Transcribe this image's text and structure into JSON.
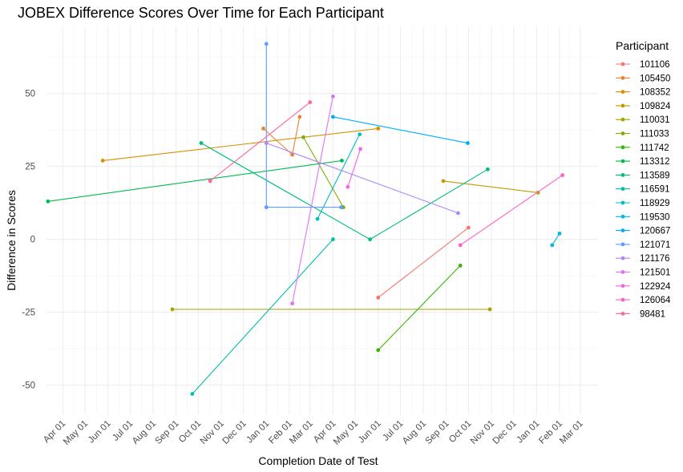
{
  "chart_data": {
    "type": "line",
    "title": "JOBEX Difference Scores Over Time for Each Participant",
    "xlabel": "Completion Date of Test",
    "ylabel": "Difference in Scores",
    "xlim": [
      "2020-03-10",
      "2022-03-25"
    ],
    "ylim": [
      -60,
      73
    ],
    "x_ticks": [
      {
        "date": "2020-04-01",
        "label": "Apr 01"
      },
      {
        "date": "2020-05-01",
        "label": "May 01"
      },
      {
        "date": "2020-06-01",
        "label": "Jun 01"
      },
      {
        "date": "2020-07-01",
        "label": "Jul 01"
      },
      {
        "date": "2020-08-01",
        "label": "Aug 01"
      },
      {
        "date": "2020-09-01",
        "label": "Sep 01"
      },
      {
        "date": "2020-10-01",
        "label": "Oct 01"
      },
      {
        "date": "2020-11-01",
        "label": "Nov 01"
      },
      {
        "date": "2020-12-01",
        "label": "Dec 01"
      },
      {
        "date": "2021-01-01",
        "label": "Jan 01"
      },
      {
        "date": "2021-02-01",
        "label": "Feb 01"
      },
      {
        "date": "2021-03-01",
        "label": "Mar 01"
      },
      {
        "date": "2021-04-01",
        "label": "Apr 01"
      },
      {
        "date": "2021-05-01",
        "label": "May 01"
      },
      {
        "date": "2021-06-01",
        "label": "Jun 01"
      },
      {
        "date": "2021-07-01",
        "label": "Jul 01"
      },
      {
        "date": "2021-08-01",
        "label": "Aug 01"
      },
      {
        "date": "2021-09-01",
        "label": "Sep 01"
      },
      {
        "date": "2021-10-01",
        "label": "Oct 01"
      },
      {
        "date": "2021-11-01",
        "label": "Nov 01"
      },
      {
        "date": "2021-12-01",
        "label": "Dec 01"
      },
      {
        "date": "2022-01-01",
        "label": "Jan 01"
      },
      {
        "date": "2022-02-01",
        "label": "Feb 01"
      },
      {
        "date": "2022-03-01",
        "label": "Mar 01"
      }
    ],
    "y_ticks": [
      -50,
      -25,
      0,
      25,
      50
    ],
    "grid": true,
    "legend_title": "Participant",
    "legend_position": "right",
    "series": [
      {
        "name": "101106",
        "color": "#F8766D",
        "points": [
          {
            "x": "2021-06-01",
            "y": -20
          },
          {
            "x": "2021-10-01",
            "y": 4
          }
        ]
      },
      {
        "name": "105450",
        "color": "#EA8331",
        "points": [
          {
            "x": "2020-12-28",
            "y": 38
          },
          {
            "x": "2021-02-05",
            "y": 29
          },
          {
            "x": "2021-02-15",
            "y": 42
          }
        ]
      },
      {
        "name": "108352",
        "color": "#D89000",
        "points": [
          {
            "x": "2020-05-25",
            "y": 27
          },
          {
            "x": "2021-06-01",
            "y": 38
          }
        ]
      },
      {
        "name": "109824",
        "color": "#C09B00",
        "points": [
          {
            "x": "2021-08-28",
            "y": 20
          },
          {
            "x": "2022-01-03",
            "y": 16
          }
        ]
      },
      {
        "name": "110031",
        "color": "#A3A500",
        "points": [
          {
            "x": "2020-08-27",
            "y": -24
          },
          {
            "x": "2021-10-30",
            "y": -24
          }
        ]
      },
      {
        "name": "111033",
        "color": "#7CAE00",
        "points": [
          {
            "x": "2021-02-20",
            "y": 35
          },
          {
            "x": "2021-04-15",
            "y": 11
          }
        ]
      },
      {
        "name": "111742",
        "color": "#39B600",
        "points": [
          {
            "x": "2021-06-01",
            "y": -38
          },
          {
            "x": "2021-09-20",
            "y": -9
          }
        ]
      },
      {
        "name": "113312",
        "color": "#00BB4E",
        "points": [
          {
            "x": "2020-03-12",
            "y": 13
          },
          {
            "x": "2021-04-13",
            "y": 27
          }
        ]
      },
      {
        "name": "113589",
        "color": "#00BF7D",
        "points": [
          {
            "x": "2020-10-05",
            "y": 33
          },
          {
            "x": "2021-05-21",
            "y": 0
          },
          {
            "x": "2021-10-27",
            "y": 24
          }
        ]
      },
      {
        "name": "116591",
        "color": "#00C1A3",
        "points": [
          {
            "x": "2020-09-23",
            "y": -53
          },
          {
            "x": "2021-04-01",
            "y": 0
          }
        ]
      },
      {
        "name": "118929",
        "color": "#00BFC4",
        "points": [
          {
            "x": "2021-03-11",
            "y": 7
          },
          {
            "x": "2021-05-07",
            "y": 36
          }
        ]
      },
      {
        "name": "119530",
        "color": "#00B9E3",
        "points": [
          {
            "x": "2022-01-22",
            "y": -2
          },
          {
            "x": "2022-02-01",
            "y": 2
          }
        ]
      },
      {
        "name": "120667",
        "color": "#00ADFA",
        "points": [
          {
            "x": "2021-04-01",
            "y": 42
          },
          {
            "x": "2021-09-30",
            "y": 33
          }
        ]
      },
      {
        "name": "121071",
        "color": "#619CFF",
        "points": [
          {
            "x": "2021-01-01",
            "y": 67
          },
          {
            "x": "2021-01-01",
            "y": 11
          },
          {
            "x": "2021-04-12",
            "y": 11
          }
        ]
      },
      {
        "name": "121176",
        "color": "#AE87FF",
        "points": [
          {
            "x": "2021-01-01",
            "y": 33
          },
          {
            "x": "2021-09-17",
            "y": 9
          }
        ]
      },
      {
        "name": "121501",
        "color": "#DB72FB",
        "points": [
          {
            "x": "2021-02-05",
            "y": -22
          },
          {
            "x": "2021-04-01",
            "y": 49
          }
        ]
      },
      {
        "name": "122924",
        "color": "#F564E3",
        "points": [
          {
            "x": "2021-04-21",
            "y": 18
          },
          {
            "x": "2021-05-08",
            "y": 31
          }
        ]
      },
      {
        "name": "126064",
        "color": "#FF61C3",
        "points": [
          {
            "x": "2021-09-20",
            "y": -2
          },
          {
            "x": "2022-02-05",
            "y": 22
          }
        ]
      },
      {
        "name": "98481",
        "color": "#FF689F",
        "points": [
          {
            "x": "2020-10-17",
            "y": 20
          },
          {
            "x": "2021-03-01",
            "y": 47
          }
        ]
      }
    ]
  }
}
